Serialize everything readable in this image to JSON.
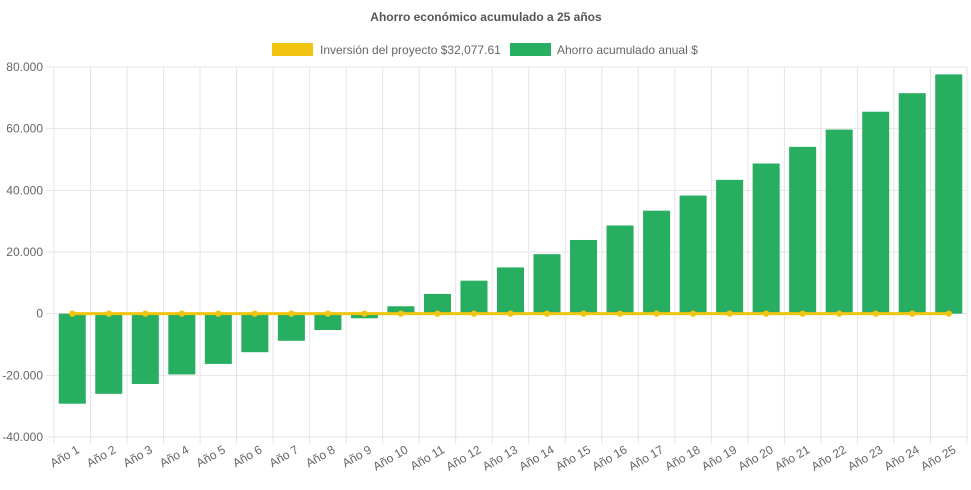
{
  "colors": {
    "investment": "#F1C40F",
    "savings": "#27AE60",
    "grid": "#e4e4e4",
    "text": "#666666",
    "title": "#555555"
  },
  "chart_data": {
    "type": "bar",
    "title": "Ahorro económico acumulado a 25 años",
    "categories": [
      "Año 1",
      "Año 2",
      "Año 3",
      "Año 4",
      "Año 5",
      "Año 6",
      "Año 7",
      "Año 8",
      "Año 9",
      "Año 10",
      "Año 11",
      "Año 12",
      "Año 13",
      "Año 14",
      "Año 15",
      "Año 16",
      "Año 17",
      "Año 18",
      "Año 19",
      "Año 20",
      "Año 21",
      "Año 22",
      "Año 23",
      "Año 24",
      "Año 25"
    ],
    "yticks": [
      "80.000",
      "60.000",
      "40.000",
      "20.000",
      "0",
      "-20.000",
      "-40.000"
    ],
    "ylim": [
      -40000,
      80000
    ],
    "grid": true,
    "legend_position": "top",
    "series": [
      {
        "name": "Inversión del proyecto $32,077.61",
        "type": "line",
        "color": "#F1C40F",
        "values": [
          0,
          0,
          0,
          0,
          0,
          0,
          0,
          0,
          0,
          0,
          0,
          0,
          0,
          0,
          0,
          0,
          0,
          0,
          0,
          0,
          0,
          0,
          0,
          0,
          0
        ]
      },
      {
        "name": "Ahorro acumulado anual $",
        "type": "bar",
        "color": "#27AE60",
        "values": [
          -29200,
          -26000,
          -22800,
          -19700,
          -16300,
          -12500,
          -8800,
          -5300,
          -1500,
          2400,
          6400,
          10700,
          15000,
          19300,
          23900,
          28600,
          33400,
          38300,
          43400,
          48700,
          54100,
          59700,
          65500,
          71500,
          77600
        ]
      }
    ]
  }
}
